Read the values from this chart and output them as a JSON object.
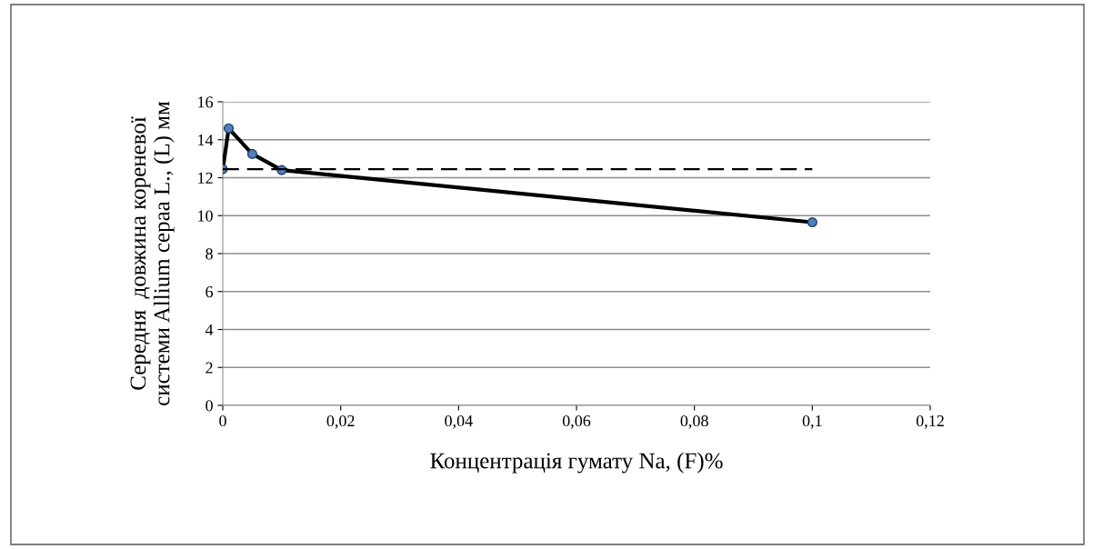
{
  "chart_data": {
    "type": "line",
    "xlabel": "Концентрація гумату Na, (F)%",
    "ylabel": "Середня  довжина кореневої\nсистеми Allium cepaa L., (L) мм",
    "xlim": [
      0,
      0.12
    ],
    "xticks": [
      0,
      {
        "value": 0.02,
        "label": "0,02"
      },
      {
        "value": 0.04,
        "label": "0,04"
      },
      {
        "value": 0.06,
        "label": "0,06"
      },
      {
        "value": 0.08,
        "label": "0,08"
      },
      {
        "value": 0.1,
        "label": "0,1"
      },
      {
        "value": 0.12,
        "label": "0,12"
      }
    ],
    "ylim": [
      0,
      16
    ],
    "yticks": [
      0,
      2,
      4,
      6,
      8,
      10,
      12,
      14,
      16
    ],
    "grid": "y",
    "legend": false,
    "series": [
      {
        "x": [
          0,
          0.001,
          0.005,
          0.01,
          0.1
        ],
        "values": [
          12.45,
          14.6,
          13.25,
          12.4,
          9.65
        ],
        "color": "#000000",
        "marker": "circle",
        "line_style": "solid"
      },
      {
        "x": [
          0,
          0.1
        ],
        "values": [
          12.45,
          12.45
        ],
        "color": "#000000",
        "marker": "none",
        "line_style": "dashed"
      }
    ]
  }
}
